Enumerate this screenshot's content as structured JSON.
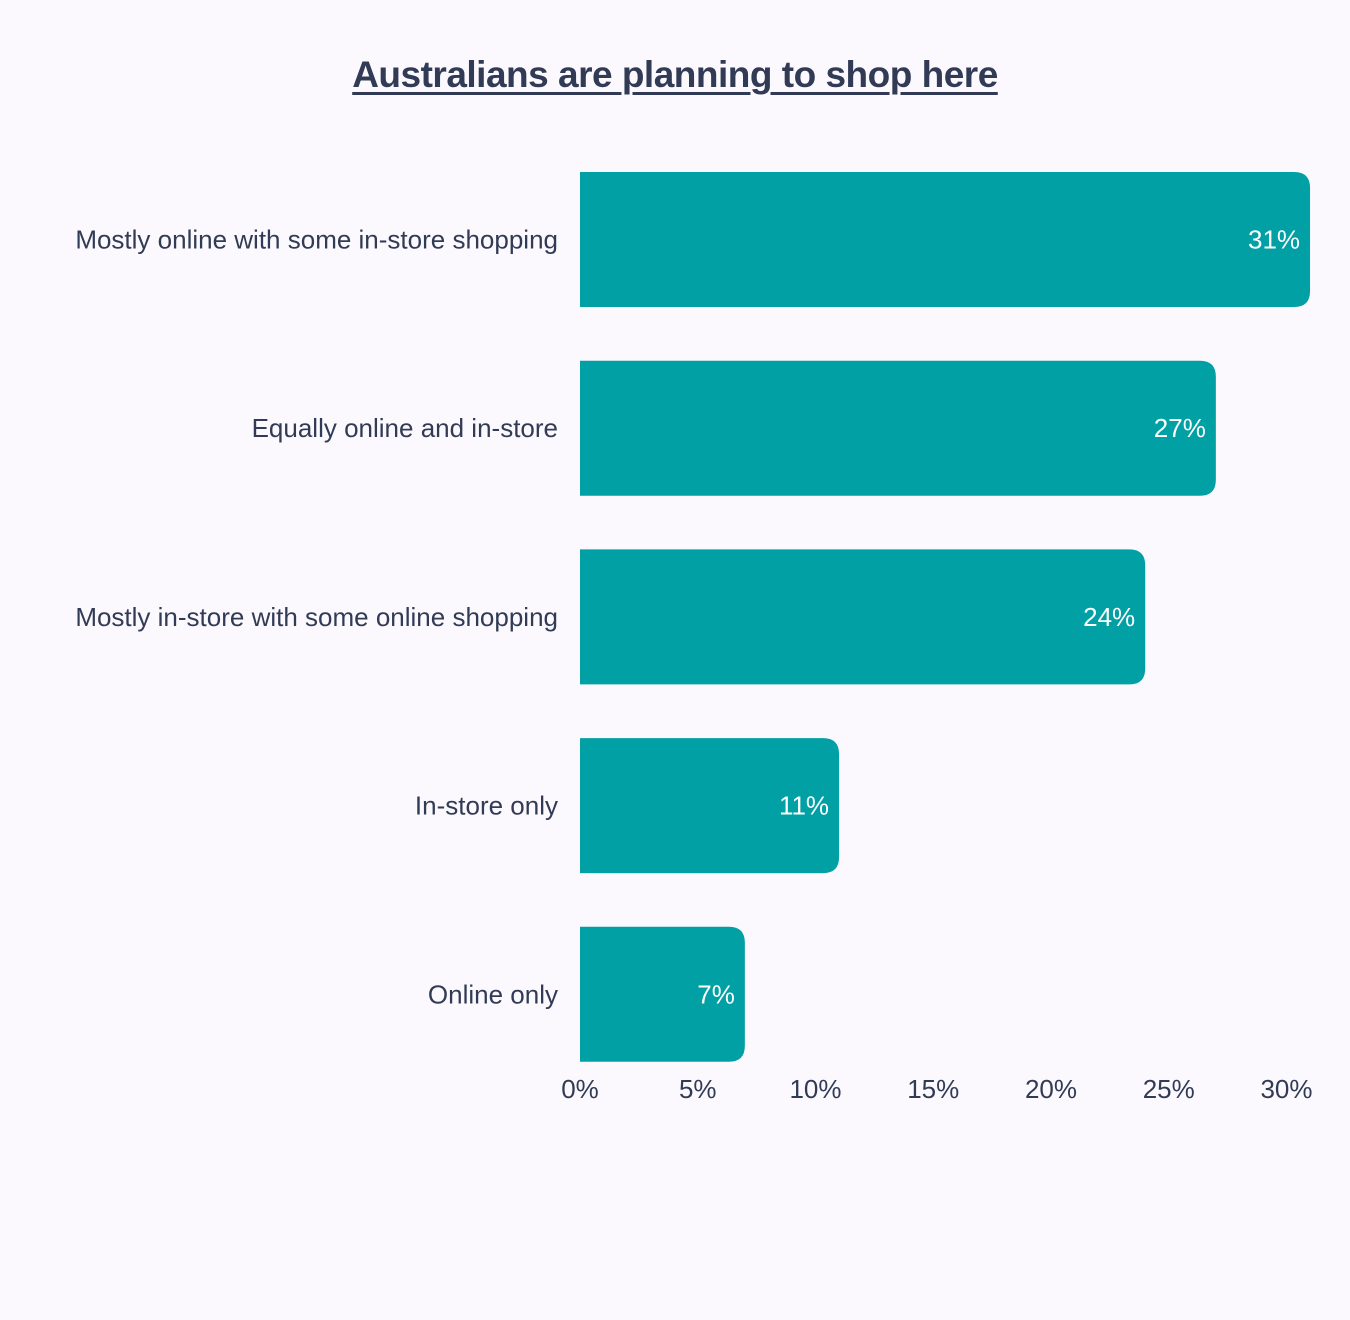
{
  "chart_data": {
    "type": "bar",
    "orientation": "horizontal",
    "title": "Australians are planning to shop here",
    "xlabel": "",
    "ylabel": "",
    "categories": [
      "Mostly online with some in-store shopping",
      "Equally online and in-store",
      "Mostly in-store with some online shopping",
      "In-store only",
      "Online only"
    ],
    "values": [
      31,
      27,
      24,
      11,
      7
    ],
    "value_labels": [
      "31%",
      "27%",
      "24%",
      "11%",
      "7%"
    ],
    "xlim": [
      0,
      30
    ],
    "x_ticks": [
      0,
      5,
      10,
      15,
      20,
      25,
      30
    ],
    "x_tick_labels": [
      "0%",
      "5%",
      "10%",
      "15%",
      "20%",
      "25%",
      "30%"
    ],
    "grid": false,
    "legend": "none",
    "bar_color": "#00a0a5",
    "text_color": "#323b55",
    "background": "#fbf9fe"
  }
}
